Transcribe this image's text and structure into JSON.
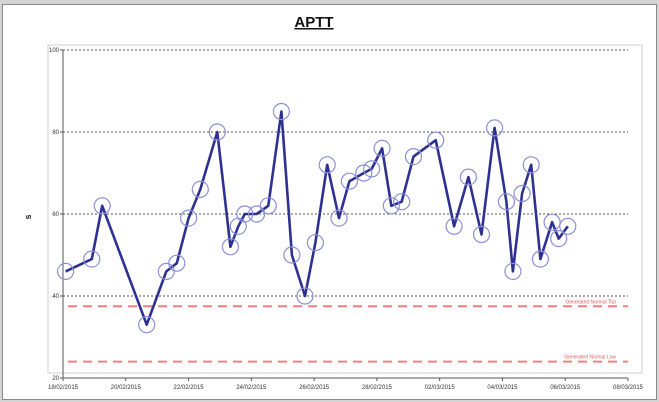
{
  "chart_data": {
    "type": "line",
    "title": "APTT",
    "xlabel": "",
    "ylabel": "s",
    "ylim": [
      20,
      100
    ],
    "yticks": [
      20,
      40,
      60,
      80,
      100
    ],
    "xlim": [
      "2015-02-18",
      "2015-03-08"
    ],
    "xticks": [
      "18/02/2015",
      "20/02/2015",
      "22/02/2015",
      "24/02/2015",
      "26/02/2015",
      "28/02/2015",
      "02/03/2015",
      "04/03/2015",
      "06/03/2015",
      "08/03/2015"
    ],
    "grid": true,
    "series": [
      {
        "color": "#2e3192",
        "marker": "open-circle",
        "points": [
          {
            "x": "2015-02-18T02:00",
            "y": 46
          },
          {
            "x": "2015-02-18T22:00",
            "y": 49
          },
          {
            "x": "2015-02-19T06:00",
            "y": 62
          },
          {
            "x": "2015-02-20T16:00",
            "y": 33
          },
          {
            "x": "2015-02-21T07:00",
            "y": 46
          },
          {
            "x": "2015-02-21T15:00",
            "y": 48
          },
          {
            "x": "2015-02-22T00:00",
            "y": 59
          },
          {
            "x": "2015-02-22T09:00",
            "y": 66
          },
          {
            "x": "2015-02-22T22:00",
            "y": 80
          },
          {
            "x": "2015-02-23T08:00",
            "y": 52
          },
          {
            "x": "2015-02-23T14:00",
            "y": 57
          },
          {
            "x": "2015-02-23T19:00",
            "y": 60
          },
          {
            "x": "2015-02-24T04:00",
            "y": 60
          },
          {
            "x": "2015-02-24T13:00",
            "y": 62
          },
          {
            "x": "2015-02-24T23:00",
            "y": 85
          },
          {
            "x": "2015-02-25T07:00",
            "y": 50
          },
          {
            "x": "2015-02-25T17:00",
            "y": 40
          },
          {
            "x": "2015-02-26T01:00",
            "y": 53
          },
          {
            "x": "2015-02-26T10:00",
            "y": 72
          },
          {
            "x": "2015-02-26T19:00",
            "y": 59
          },
          {
            "x": "2015-02-27T03:00",
            "y": 68
          },
          {
            "x": "2015-02-27T14:00",
            "y": 70
          },
          {
            "x": "2015-02-27T20:00",
            "y": 71
          },
          {
            "x": "2015-02-28T04:00",
            "y": 76
          },
          {
            "x": "2015-02-28T11:00",
            "y": 62
          },
          {
            "x": "2015-02-28T19:00",
            "y": 63
          },
          {
            "x": "2015-03-01T04:00",
            "y": 74
          },
          {
            "x": "2015-03-01T21:00",
            "y": 78
          },
          {
            "x": "2015-03-02T11:00",
            "y": 57
          },
          {
            "x": "2015-03-02T22:00",
            "y": 69
          },
          {
            "x": "2015-03-03T08:00",
            "y": 55
          },
          {
            "x": "2015-03-03T18:00",
            "y": 81
          },
          {
            "x": "2015-03-04T03:00",
            "y": 63
          },
          {
            "x": "2015-03-04T08:00",
            "y": 46
          },
          {
            "x": "2015-03-04T15:00",
            "y": 65
          },
          {
            "x": "2015-03-04T22:00",
            "y": 72
          },
          {
            "x": "2015-03-05T05:00",
            "y": 49
          },
          {
            "x": "2015-03-05T14:00",
            "y": 58
          },
          {
            "x": "2015-03-05T19:00",
            "y": 54
          },
          {
            "x": "2015-03-06T02:00",
            "y": 57
          }
        ]
      }
    ],
    "reference_lines": [
      {
        "label": "Generated Normal Top",
        "y": 37.5,
        "color": "#f08080"
      },
      {
        "label": "Generated Normal Low",
        "y": 24,
        "color": "#f08080"
      }
    ]
  }
}
